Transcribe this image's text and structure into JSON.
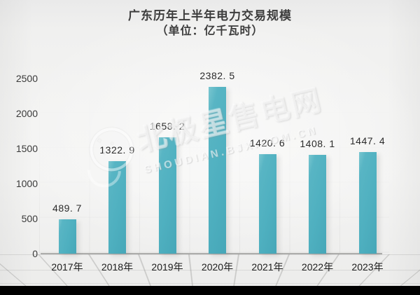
{
  "title": {
    "line1": "广东历年上半年电力交易规模",
    "line2": "（单位：亿千瓦时）"
  },
  "watermark": {
    "text": "北极星售电网",
    "subtext": "SHOUDIAN.BJX.COM.CN",
    "logo": "star-circle-crescent",
    "star_glyph": "✦"
  },
  "chart_data": {
    "type": "bar",
    "title": "广东历年上半年电力交易规模",
    "subtitle": "（单位：亿千瓦时）",
    "categories": [
      "2017年",
      "2018年",
      "2019年",
      "2020年",
      "2021年",
      "2022年",
      "2023年"
    ],
    "values": [
      489.7,
      1322.9,
      1658.2,
      2382.5,
      1420.6,
      1408.1,
      1447.4
    ],
    "value_labels": [
      "489. 7",
      "1322. 9",
      "1658. 2",
      "2382. 5",
      "1420. 6",
      "1408. 1",
      "1447. 4"
    ],
    "y_ticks": [
      0,
      500,
      1000,
      1500,
      2000,
      2500
    ],
    "y_tick_labels": [
      "0",
      "500",
      "1000",
      "1500",
      "2000",
      "2500"
    ],
    "ylim": [
      0,
      2500
    ],
    "xlabel": "",
    "ylabel": "",
    "grid": "faint wall and perspective floor grid",
    "legend": "none",
    "bar_color": "#4fb0c0"
  },
  "colors": {
    "background": "#f2f2f1",
    "bar": "#4fb0c0",
    "bar_highlight": "#79c6d0",
    "bar_shadow_edge": "#46a7b8",
    "axis_line": "#adadab",
    "title_text": "#3d3d3d",
    "tick_text": "#3a3a3a",
    "value_text": "#2b2b2b",
    "bottom_strip": "#000000",
    "watermark": "rgba(255,255,255,0.55)"
  }
}
